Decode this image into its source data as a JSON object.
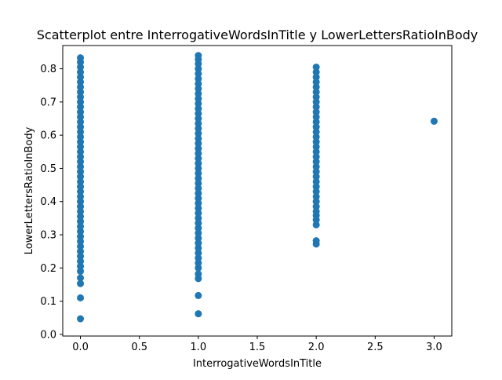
{
  "chart_data": {
    "type": "scatter",
    "title": "Scatterplot entre InterrogativeWordsInTitle y LowerLettersRatioInBody",
    "xlabel": "InterrogativeWordsInTitle",
    "ylabel": "LowerLettersRatioInBody",
    "xlim": [
      -0.15,
      3.15
    ],
    "ylim": [
      -0.005,
      0.87
    ],
    "xticks": [
      0.0,
      0.5,
      1.0,
      1.5,
      2.0,
      2.5,
      3.0
    ],
    "xtick_labels": [
      "0.0",
      "0.5",
      "1.0",
      "1.5",
      "2.0",
      "2.5",
      "3.0"
    ],
    "yticks": [
      0.0,
      0.1,
      0.2,
      0.3,
      0.4,
      0.5,
      0.6,
      0.7,
      0.8
    ],
    "ytick_labels": [
      "0.0",
      "0.1",
      "0.2",
      "0.3",
      "0.4",
      "0.5",
      "0.6",
      "0.7",
      "0.8"
    ],
    "grid": false,
    "color": "#1f77b4",
    "points": [
      {
        "x": 0,
        "y": 0.047
      },
      {
        "x": 0,
        "y": 0.11
      },
      {
        "x": 0,
        "y": 0.153
      },
      {
        "x": 0,
        "y": 0.17
      },
      {
        "x": 0,
        "y": 0.19
      },
      {
        "x": 0,
        "y": 0.205
      },
      {
        "x": 0,
        "y": 0.22
      },
      {
        "x": 0,
        "y": 0.235
      },
      {
        "x": 0,
        "y": 0.25
      },
      {
        "x": 0,
        "y": 0.265
      },
      {
        "x": 0,
        "y": 0.28
      },
      {
        "x": 0,
        "y": 0.295
      },
      {
        "x": 0,
        "y": 0.31
      },
      {
        "x": 0,
        "y": 0.325
      },
      {
        "x": 0,
        "y": 0.34
      },
      {
        "x": 0,
        "y": 0.355
      },
      {
        "x": 0,
        "y": 0.37
      },
      {
        "x": 0,
        "y": 0.385
      },
      {
        "x": 0,
        "y": 0.4
      },
      {
        "x": 0,
        "y": 0.415
      },
      {
        "x": 0,
        "y": 0.43
      },
      {
        "x": 0,
        "y": 0.445
      },
      {
        "x": 0,
        "y": 0.46
      },
      {
        "x": 0,
        "y": 0.475
      },
      {
        "x": 0,
        "y": 0.49
      },
      {
        "x": 0,
        "y": 0.505
      },
      {
        "x": 0,
        "y": 0.52
      },
      {
        "x": 0,
        "y": 0.535
      },
      {
        "x": 0,
        "y": 0.55
      },
      {
        "x": 0,
        "y": 0.565
      },
      {
        "x": 0,
        "y": 0.58
      },
      {
        "x": 0,
        "y": 0.595
      },
      {
        "x": 0,
        "y": 0.61
      },
      {
        "x": 0,
        "y": 0.625
      },
      {
        "x": 0,
        "y": 0.64
      },
      {
        "x": 0,
        "y": 0.655
      },
      {
        "x": 0,
        "y": 0.67
      },
      {
        "x": 0,
        "y": 0.685
      },
      {
        "x": 0,
        "y": 0.7
      },
      {
        "x": 0,
        "y": 0.715
      },
      {
        "x": 0,
        "y": 0.73
      },
      {
        "x": 0,
        "y": 0.745
      },
      {
        "x": 0,
        "y": 0.76
      },
      {
        "x": 0,
        "y": 0.775
      },
      {
        "x": 0,
        "y": 0.79
      },
      {
        "x": 0,
        "y": 0.805
      },
      {
        "x": 0,
        "y": 0.82
      },
      {
        "x": 0,
        "y": 0.833
      },
      {
        "x": 1,
        "y": 0.062
      },
      {
        "x": 1,
        "y": 0.117
      },
      {
        "x": 1,
        "y": 0.168
      },
      {
        "x": 1,
        "y": 0.182
      },
      {
        "x": 1,
        "y": 0.2
      },
      {
        "x": 1,
        "y": 0.215
      },
      {
        "x": 1,
        "y": 0.23
      },
      {
        "x": 1,
        "y": 0.245
      },
      {
        "x": 1,
        "y": 0.26
      },
      {
        "x": 1,
        "y": 0.275
      },
      {
        "x": 1,
        "y": 0.29
      },
      {
        "x": 1,
        "y": 0.305
      },
      {
        "x": 1,
        "y": 0.32
      },
      {
        "x": 1,
        "y": 0.335
      },
      {
        "x": 1,
        "y": 0.35
      },
      {
        "x": 1,
        "y": 0.365
      },
      {
        "x": 1,
        "y": 0.38
      },
      {
        "x": 1,
        "y": 0.395
      },
      {
        "x": 1,
        "y": 0.41
      },
      {
        "x": 1,
        "y": 0.425
      },
      {
        "x": 1,
        "y": 0.44
      },
      {
        "x": 1,
        "y": 0.455
      },
      {
        "x": 1,
        "y": 0.47
      },
      {
        "x": 1,
        "y": 0.485
      },
      {
        "x": 1,
        "y": 0.5
      },
      {
        "x": 1,
        "y": 0.515
      },
      {
        "x": 1,
        "y": 0.53
      },
      {
        "x": 1,
        "y": 0.545
      },
      {
        "x": 1,
        "y": 0.56
      },
      {
        "x": 1,
        "y": 0.575
      },
      {
        "x": 1,
        "y": 0.59
      },
      {
        "x": 1,
        "y": 0.605
      },
      {
        "x": 1,
        "y": 0.62
      },
      {
        "x": 1,
        "y": 0.635
      },
      {
        "x": 1,
        "y": 0.65
      },
      {
        "x": 1,
        "y": 0.665
      },
      {
        "x": 1,
        "y": 0.68
      },
      {
        "x": 1,
        "y": 0.695
      },
      {
        "x": 1,
        "y": 0.71
      },
      {
        "x": 1,
        "y": 0.725
      },
      {
        "x": 1,
        "y": 0.74
      },
      {
        "x": 1,
        "y": 0.755
      },
      {
        "x": 1,
        "y": 0.77
      },
      {
        "x": 1,
        "y": 0.785
      },
      {
        "x": 1,
        "y": 0.8
      },
      {
        "x": 1,
        "y": 0.815
      },
      {
        "x": 1,
        "y": 0.828
      },
      {
        "x": 1,
        "y": 0.84
      },
      {
        "x": 2,
        "y": 0.272
      },
      {
        "x": 2,
        "y": 0.282
      },
      {
        "x": 2,
        "y": 0.33
      },
      {
        "x": 2,
        "y": 0.345
      },
      {
        "x": 2,
        "y": 0.358
      },
      {
        "x": 2,
        "y": 0.37
      },
      {
        "x": 2,
        "y": 0.385
      },
      {
        "x": 2,
        "y": 0.4
      },
      {
        "x": 2,
        "y": 0.415
      },
      {
        "x": 2,
        "y": 0.43
      },
      {
        "x": 2,
        "y": 0.445
      },
      {
        "x": 2,
        "y": 0.46
      },
      {
        "x": 2,
        "y": 0.475
      },
      {
        "x": 2,
        "y": 0.49
      },
      {
        "x": 2,
        "y": 0.505
      },
      {
        "x": 2,
        "y": 0.52
      },
      {
        "x": 2,
        "y": 0.535
      },
      {
        "x": 2,
        "y": 0.55
      },
      {
        "x": 2,
        "y": 0.565
      },
      {
        "x": 2,
        "y": 0.58
      },
      {
        "x": 2,
        "y": 0.595
      },
      {
        "x": 2,
        "y": 0.61
      },
      {
        "x": 2,
        "y": 0.625
      },
      {
        "x": 2,
        "y": 0.64
      },
      {
        "x": 2,
        "y": 0.655
      },
      {
        "x": 2,
        "y": 0.67
      },
      {
        "x": 2,
        "y": 0.685
      },
      {
        "x": 2,
        "y": 0.7
      },
      {
        "x": 2,
        "y": 0.715
      },
      {
        "x": 2,
        "y": 0.73
      },
      {
        "x": 2,
        "y": 0.745
      },
      {
        "x": 2,
        "y": 0.76
      },
      {
        "x": 2,
        "y": 0.775
      },
      {
        "x": 2,
        "y": 0.79
      },
      {
        "x": 2,
        "y": 0.805
      },
      {
        "x": 3,
        "y": 0.642
      }
    ]
  }
}
